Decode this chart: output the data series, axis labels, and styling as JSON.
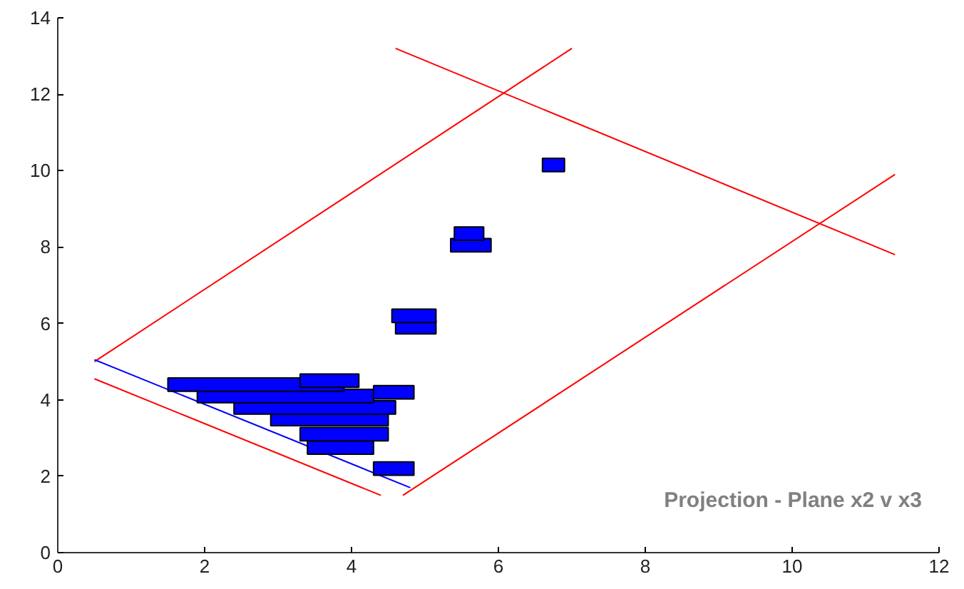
{
  "chart_data": {
    "type": "bar",
    "orientation": "horizontal",
    "annotations": [
      "Projection - Plane x2 v x3"
    ],
    "xlim": [
      0,
      12
    ],
    "ylim": [
      0,
      14
    ],
    "xticks": [
      0,
      2,
      4,
      6,
      8,
      10,
      12
    ],
    "yticks": [
      0,
      2,
      4,
      6,
      8,
      10,
      12,
      14
    ],
    "grid": false,
    "marker": "none",
    "line_style": "solid",
    "series": [
      {
        "type": "line",
        "color": "#ff0000",
        "x": [
          5.0,
          13.2
        ],
        "values": [
          0.5,
          7.0
        ]
      },
      {
        "type": "line",
        "color": "#ff0000",
        "x": [
          1.5,
          9.9
        ],
        "values": [
          4.7,
          11.4
        ]
      },
      {
        "type": "line",
        "color": "#ff0000",
        "x": [
          7.8,
          13.2
        ],
        "values": [
          11.4,
          4.6
        ]
      },
      {
        "type": "line",
        "color": "#ff0000",
        "x": [
          1.5,
          4.55
        ],
        "values": [
          4.4,
          0.5
        ]
      },
      {
        "type": "line",
        "color": "#0000ff",
        "x": [
          1.7,
          5.05
        ],
        "values": [
          4.8,
          0.5
        ]
      },
      {
        "color": "#0000ff",
        "x": [
          2.2,
          2.75,
          3.1,
          3.5,
          3.8,
          4.1,
          4.2,
          4.4,
          4.5,
          5.9,
          6.2,
          8.05,
          8.35,
          10.15
        ],
        "base": [
          4.3,
          3.4,
          3.3,
          2.9,
          2.4,
          1.9,
          4.3,
          1.5,
          3.3,
          4.6,
          4.55,
          5.35,
          5.4,
          6.6
        ],
        "values": [
          0.55,
          0.9,
          1.2,
          1.6,
          2.2,
          2.4,
          0.55,
          2.4,
          0.8,
          0.55,
          0.6,
          0.55,
          0.4,
          0.3
        ]
      }
    ]
  }
}
